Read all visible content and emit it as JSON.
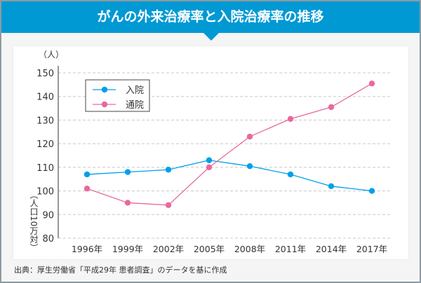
{
  "header": {
    "title": "がんの外来治療率と入院治療率の推移"
  },
  "footer": {
    "source": "出典：厚生労働省「平成29年 患者調査」のデータを基に作成"
  },
  "chart_data": {
    "type": "line",
    "title": "がんの外来治療率と入院治療率の推移",
    "unit_label": "（人）",
    "ylabel": "（人口10万対）",
    "categories": [
      "1996年",
      "1999年",
      "2002年",
      "2005年",
      "2008年",
      "2011年",
      "2014年",
      "2017年"
    ],
    "ylim": [
      80,
      150
    ],
    "yticks": [
      80,
      90,
      100,
      110,
      120,
      130,
      140,
      150
    ],
    "grid": true,
    "legend_position": "top-left",
    "series": [
      {
        "name": "入院",
        "color": "#00a0e9",
        "values": [
          107,
          108,
          109,
          113,
          110.5,
          107,
          102,
          100
        ]
      },
      {
        "name": "通院",
        "color": "#e9689e",
        "values": [
          101,
          95,
          94,
          110,
          123,
          130.5,
          135.5,
          145.5
        ]
      }
    ]
  }
}
